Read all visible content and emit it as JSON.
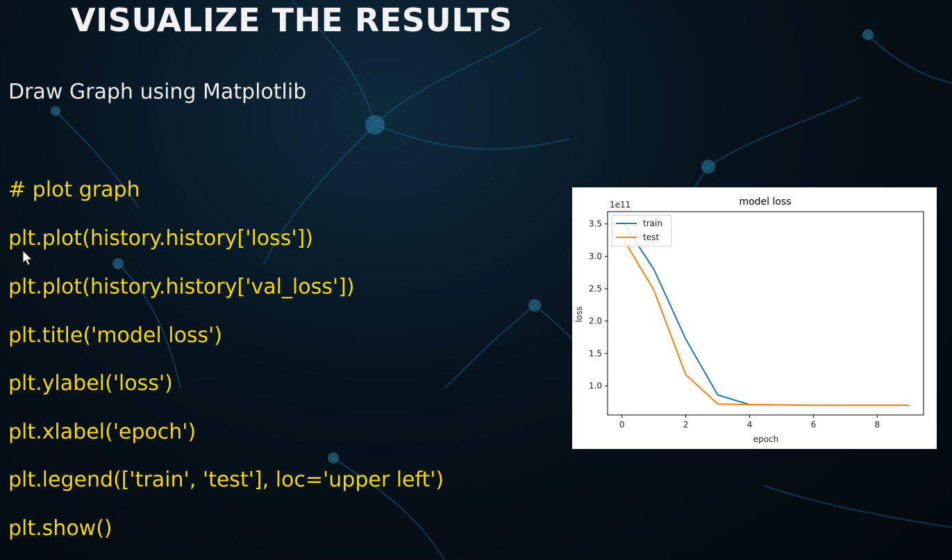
{
  "slide": {
    "title": "VISUALIZE THE RESULTS",
    "subtitle": "Draw Graph using Matplotlib"
  },
  "code_lines": [
    "# plot graph",
    "plt.plot(history.history['loss'])",
    "plt.plot(history.history['val_loss'])",
    "plt.title('model loss')",
    "plt.ylabel('loss')",
    "plt.xlabel('epoch')",
    "plt.legend(['train', 'test'], loc='upper left')",
    "plt.show()"
  ],
  "colors": {
    "title": "#f2f2f2",
    "code": "#f4d800",
    "train": "#1f77b4",
    "test": "#ff7f0e"
  },
  "chart_data": {
    "type": "line",
    "title": "model loss",
    "xlabel": "epoch",
    "ylabel": "loss",
    "offset_label": "1e11",
    "x": [
      0,
      1,
      2,
      3,
      4,
      5,
      6,
      7,
      8,
      9
    ],
    "series": [
      {
        "name": "train",
        "color": "#1f77b4",
        "values": [
          3.55,
          2.8,
          1.72,
          0.86,
          0.71,
          0.705,
          0.7,
          0.7,
          0.7,
          0.7
        ]
      },
      {
        "name": "test",
        "color": "#ff7f0e",
        "values": [
          3.3,
          2.48,
          1.17,
          0.72,
          0.71,
          0.705,
          0.7,
          0.7,
          0.7,
          0.7
        ]
      }
    ],
    "xticks": [
      0,
      2,
      4,
      6,
      8
    ],
    "yticks": [
      1.0,
      1.5,
      2.0,
      2.5,
      3.0,
      3.5
    ],
    "ytick_labels": [
      "1.0",
      "1.5",
      "2.0",
      "2.5",
      "3.0",
      "3.5"
    ],
    "xlim": [
      -0.45,
      9.45
    ],
    "ylim": [
      0.55,
      3.69
    ],
    "legend": "upper left",
    "grid": false
  }
}
